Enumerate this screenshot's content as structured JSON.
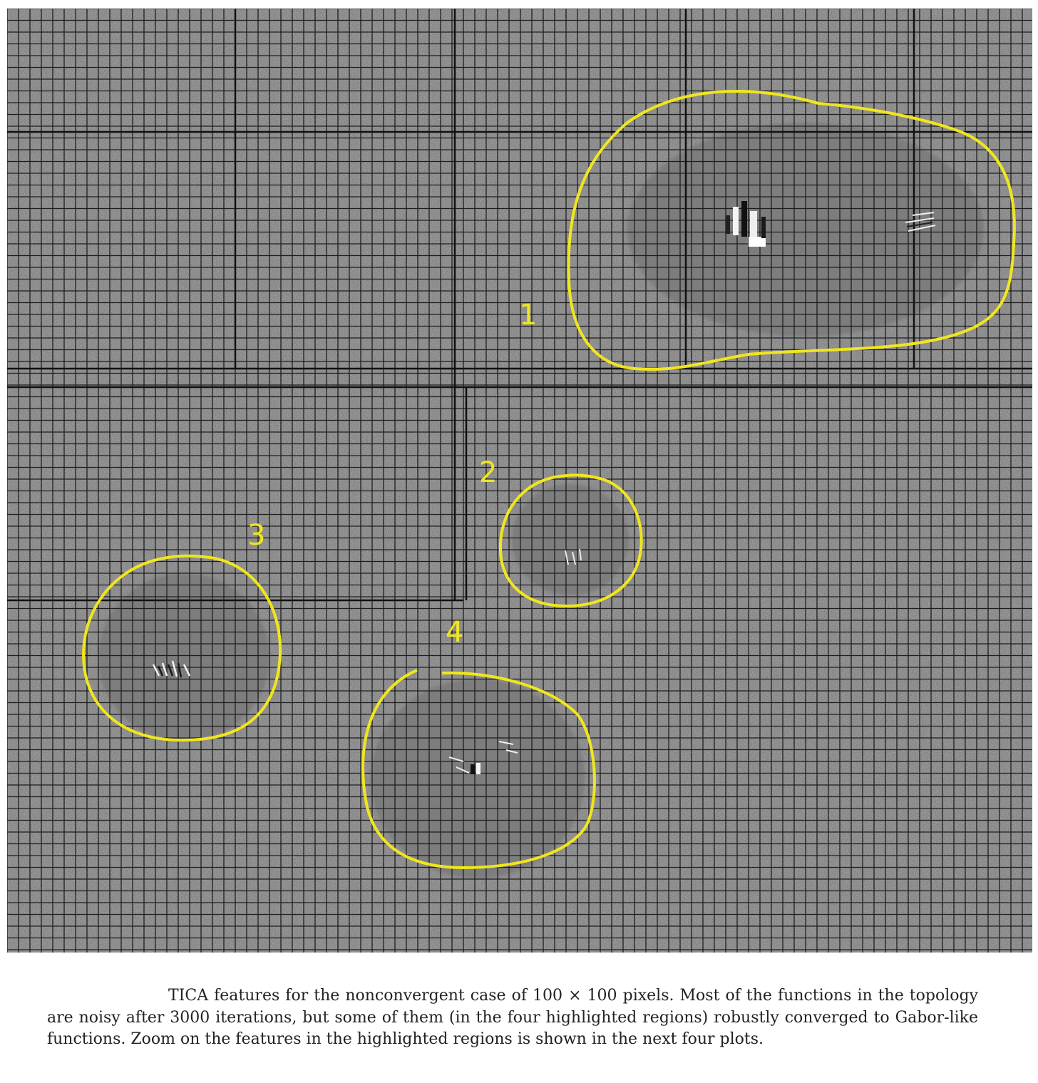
{
  "figure": {
    "regions": [
      {
        "label": "1"
      },
      {
        "label": "2"
      },
      {
        "label": "3"
      },
      {
        "label": "4"
      }
    ],
    "highlight_color": "#f0e61e",
    "grid_background": "#7e7e7e"
  },
  "caption": {
    "text": "TICA features for the nonconvergent case of 100 × 100 pixels. Most of the functions in the topology are noisy after 3000 iterations, but some of them (in the four highlighted regions) robustly converged to Gabor-like functions. Zoom on the features in the highlighted regions is shown in the next four plots."
  }
}
